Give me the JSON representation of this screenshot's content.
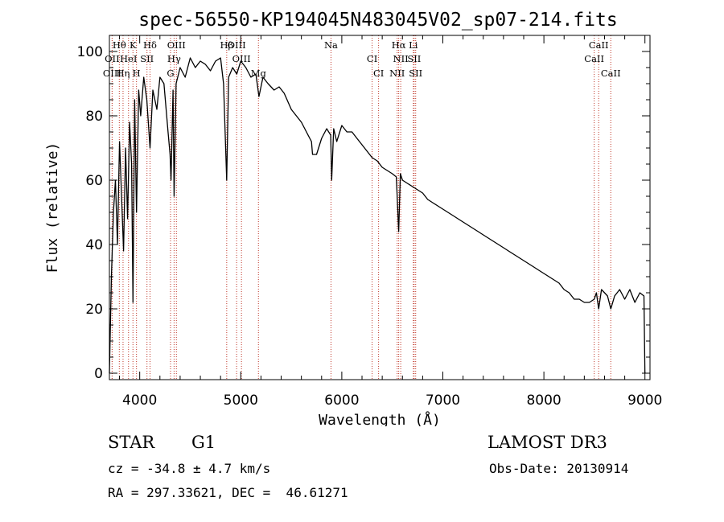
{
  "chart_data": {
    "type": "line",
    "title": "spec-56550-KP194045N483045V02_sp07-214.fits",
    "xlabel": "Wavelength (Å)",
    "ylabel": "Flux (relative)",
    "xlim": [
      3700,
      9050
    ],
    "ylim": [
      -2,
      105
    ],
    "xticks": [
      4000,
      5000,
      6000,
      7000,
      8000,
      9000
    ],
    "yticks": [
      0,
      20,
      40,
      60,
      80,
      100
    ],
    "series": [
      {
        "name": "flux",
        "x": [
          3700,
          3720,
          3740,
          3760,
          3780,
          3800,
          3820,
          3840,
          3860,
          3880,
          3900,
          3920,
          3933,
          3950,
          3968,
          3990,
          4010,
          4040,
          4070,
          4102,
          4130,
          4170,
          4200,
          4240,
          4280,
          4300,
          4310,
          4330,
          4340,
          4360,
          4400,
          4450,
          4500,
          4550,
          4600,
          4650,
          4700,
          4750,
          4800,
          4830,
          4861,
          4880,
          4920,
          4960,
          5000,
          5050,
          5100,
          5150,
          5180,
          5220,
          5270,
          5330,
          5380,
          5430,
          5500,
          5550,
          5600,
          5650,
          5700,
          5710,
          5750,
          5800,
          5850,
          5890,
          5900,
          5920,
          5950,
          6000,
          6050,
          6100,
          6150,
          6200,
          6250,
          6300,
          6350,
          6400,
          6450,
          6500,
          6540,
          6563,
          6580,
          6600,
          6650,
          6700,
          6750,
          6800,
          6850,
          6900,
          6950,
          7000,
          7050,
          7100,
          7150,
          7200,
          7250,
          7300,
          7350,
          7400,
          7450,
          7500,
          7550,
          7600,
          7650,
          7700,
          7750,
          7800,
          7850,
          7900,
          7950,
          8000,
          8050,
          8100,
          8150,
          8200,
          8250,
          8300,
          8350,
          8400,
          8450,
          8498,
          8520,
          8542,
          8570,
          8600,
          8630,
          8662,
          8700,
          8750,
          8800,
          8850,
          8900,
          8950,
          8990,
          9000
        ],
        "y": [
          0,
          30,
          50,
          60,
          40,
          72,
          55,
          38,
          70,
          48,
          78,
          65,
          22,
          85,
          50,
          88,
          80,
          92,
          85,
          70,
          88,
          82,
          92,
          90,
          75,
          68,
          60,
          88,
          55,
          90,
          95,
          92,
          98,
          95,
          97,
          96,
          94,
          97,
          98,
          90,
          60,
          92,
          95,
          93,
          97,
          95,
          92,
          93,
          86,
          92,
          90,
          88,
          89,
          87,
          82,
          80,
          78,
          75,
          72,
          68,
          68,
          73,
          76,
          74,
          60,
          76,
          72,
          77,
          75,
          75,
          73,
          71,
          69,
          67,
          66,
          64,
          63,
          62,
          61,
          44,
          62,
          60,
          59,
          58,
          57,
          56,
          54,
          53,
          52,
          51,
          50,
          49,
          48,
          47,
          46,
          45,
          44,
          43,
          42,
          41,
          40,
          39,
          38,
          37,
          36,
          35,
          34,
          33,
          32,
          31,
          30,
          29,
          28,
          26,
          25,
          23,
          23,
          22,
          22,
          23,
          25,
          20,
          26,
          25,
          24,
          20,
          24,
          26,
          23,
          26,
          22,
          25,
          24,
          0
        ]
      }
    ],
    "lines": [
      {
        "name": "Hθ",
        "x": 3798
      },
      {
        "name": "OII",
        "x": 3727
      },
      {
        "name": "OIII",
        "x": 3727
      },
      {
        "name": "K",
        "x": 3933
      },
      {
        "name": "HeI",
        "x": 3889
      },
      {
        "name": "Hη",
        "x": 3835
      },
      {
        "name": "Hδ",
        "x": 4102
      },
      {
        "name": "SII",
        "x": 4072
      },
      {
        "name": "H",
        "x": 3968
      },
      {
        "name": "OIII",
        "x": 4363
      },
      {
        "name": "Hγ",
        "x": 4340
      },
      {
        "name": "G",
        "x": 4305
      },
      {
        "name": "OIII",
        "x": 4959
      },
      {
        "name": "OIII",
        "x": 5007
      },
      {
        "name": "Mg",
        "x": 5175
      },
      {
        "name": "Na",
        "x": 5893
      },
      {
        "name": "CI",
        "x": 6300
      },
      {
        "name": "CI",
        "x": 6364
      },
      {
        "name": "Hα",
        "x": 6563
      },
      {
        "name": "SII",
        "x": 6716
      },
      {
        "name": "NII",
        "x": 6548
      },
      {
        "name": "Li",
        "x": 6708
      },
      {
        "name": "NII",
        "x": 6583
      },
      {
        "name": "SII",
        "x": 6731
      },
      {
        "name": "CaII",
        "x": 8542
      },
      {
        "name": "CaII",
        "x": 8498
      },
      {
        "name": "CaII",
        "x": 8662
      },
      {
        "name": "Hβ",
        "x": 4861
      }
    ]
  },
  "info": {
    "class_label": "STAR",
    "subclass": "G1",
    "survey": "LAMOST DR3",
    "velocity": "cz = -34.8 ± 4.7 km/s",
    "obs_date": "Obs-Date: 20130914",
    "coords": "RA = 297.33621, DEC =  46.61271"
  },
  "colors": {
    "spectrum": "#000000",
    "line_marker": "#c0392b"
  }
}
